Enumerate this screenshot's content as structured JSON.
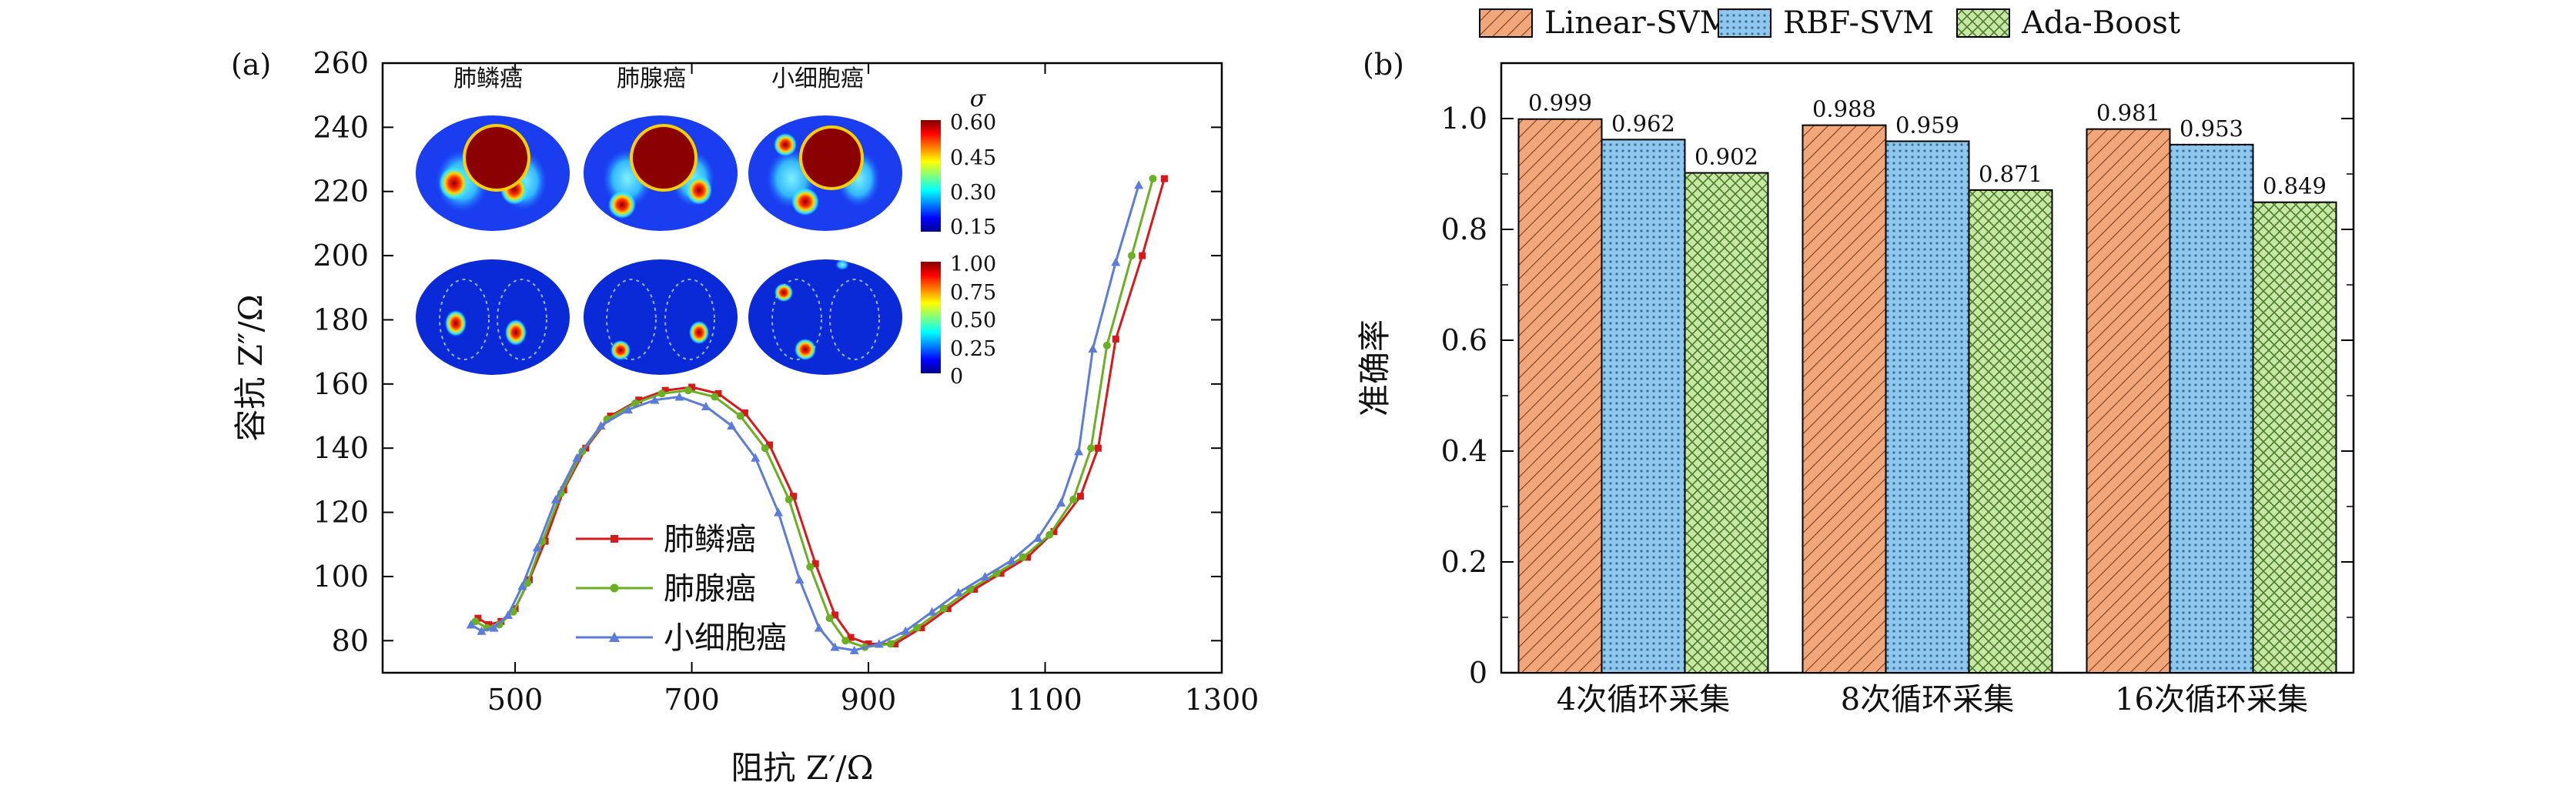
{
  "panel_a": {
    "label": "(a)",
    "xlabel": "阻抗 Z′/Ω",
    "ylabel": "容抗 Z″/Ω",
    "xticks": [
      "500",
      "700",
      "900",
      "1100",
      "1300"
    ],
    "yticks": [
      "80",
      "100",
      "120",
      "140",
      "160",
      "180",
      "200",
      "220",
      "240",
      "260"
    ],
    "inset": {
      "col_titles": [
        "肺鳞癌",
        "肺腺癌",
        "小细胞癌"
      ],
      "sigma_label": "σ",
      "cbar_top_ticks": [
        "0.60",
        "0.45",
        "0.30",
        "0.15"
      ],
      "cbar_bottom_ticks": [
        "1.00",
        "0.75",
        "0.50",
        "0.25",
        "0"
      ]
    }
  },
  "panel_b": {
    "label": "(b)",
    "ylabel": "准确率",
    "yticks": [
      "0",
      "0.2",
      "0.4",
      "0.6",
      "0.8",
      "1.0"
    ],
    "legend": [
      "Linear-SVM",
      "RBF-SVM",
      "Ada-Boost"
    ]
  },
  "chart_data": [
    {
      "type": "line",
      "xlabel": "阻抗 Z′/Ω",
      "ylabel": "容抗 Z″/Ω",
      "xlim": [
        350,
        1300
      ],
      "ylim": [
        70,
        260
      ],
      "legend_placement": "bottom-center",
      "series": [
        {
          "name": "肺鳞癌",
          "color": "#d7191c",
          "marker": "square",
          "points": [
            [
              458,
              87
            ],
            [
              470,
              85
            ],
            [
              484,
              86
            ],
            [
              500,
              90
            ],
            [
              516,
              99
            ],
            [
              534,
              111
            ],
            [
              555,
              127
            ],
            [
              580,
              140
            ],
            [
              608,
              150
            ],
            [
              640,
              155
            ],
            [
              670,
              158
            ],
            [
              700,
              159
            ],
            [
              730,
              157
            ],
            [
              760,
              151
            ],
            [
              788,
              141
            ],
            [
              815,
              125
            ],
            [
              840,
              104
            ],
            [
              862,
              88
            ],
            [
              880,
              81
            ],
            [
              900,
              79
            ],
            [
              930,
              79
            ],
            [
              960,
              84
            ],
            [
              990,
              90
            ],
            [
              1020,
              96
            ],
            [
              1050,
              101
            ],
            [
              1080,
              106
            ],
            [
              1110,
              114
            ],
            [
              1140,
              125
            ],
            [
              1160,
              140
            ],
            [
              1180,
              174
            ],
            [
              1210,
              200
            ],
            [
              1235,
              224
            ]
          ]
        },
        {
          "name": "肺腺癌",
          "color": "#6ab023",
          "marker": "circle",
          "points": [
            [
              455,
              86
            ],
            [
              468,
              84
            ],
            [
              482,
              85
            ],
            [
              498,
              89
            ],
            [
              514,
              98
            ],
            [
              531,
              111
            ],
            [
              552,
              126
            ],
            [
              576,
              139
            ],
            [
              604,
              149
            ],
            [
              636,
              154
            ],
            [
              666,
              157
            ],
            [
              696,
              158
            ],
            [
              726,
              156
            ],
            [
              755,
              150
            ],
            [
              783,
              140
            ],
            [
              810,
              124
            ],
            [
              834,
              103
            ],
            [
              856,
              87
            ],
            [
              874,
              80
            ],
            [
              896,
              78
            ],
            [
              925,
              79
            ],
            [
              955,
              84
            ],
            [
              985,
              90
            ],
            [
              1015,
              96
            ],
            [
              1045,
              101
            ],
            [
              1075,
              106
            ],
            [
              1105,
              113
            ],
            [
              1132,
              124
            ],
            [
              1152,
              140
            ],
            [
              1170,
              172
            ],
            [
              1198,
              200
            ],
            [
              1222,
              224
            ]
          ]
        },
        {
          "name": "小细胞癌",
          "color": "#5b7cd9",
          "marker": "triangle",
          "points": [
            [
              450,
              85
            ],
            [
              462,
              83
            ],
            [
              476,
              84
            ],
            [
              492,
              88
            ],
            [
              508,
              97
            ],
            [
              525,
              109
            ],
            [
              546,
              124
            ],
            [
              570,
              137
            ],
            [
              597,
              147
            ],
            [
              628,
              152
            ],
            [
              658,
              155
            ],
            [
              686,
              156
            ],
            [
              716,
              153
            ],
            [
              745,
              147
            ],
            [
              772,
              137
            ],
            [
              798,
              120
            ],
            [
              822,
              99
            ],
            [
              844,
              84
            ],
            [
              862,
              78
            ],
            [
              884,
              77
            ],
            [
              912,
              79
            ],
            [
              942,
              83
            ],
            [
              972,
              89
            ],
            [
              1002,
              95
            ],
            [
              1032,
              100
            ],
            [
              1062,
              105
            ],
            [
              1092,
              112
            ],
            [
              1118,
              123
            ],
            [
              1138,
              139
            ],
            [
              1154,
              171
            ],
            [
              1180,
              198
            ],
            [
              1206,
              222
            ]
          ]
        }
      ]
    },
    {
      "type": "bar",
      "categories": [
        "4次循环采集",
        "8次循环采集",
        "16次循环采集"
      ],
      "ylabel": "准确率",
      "ylim": [
        0,
        1.1
      ],
      "legend_placement": "top-center",
      "series": [
        {
          "name": "Linear-SVM",
          "color": "#f2a77a",
          "pattern": "hatch-diagonal",
          "values": [
            0.999,
            0.988,
            0.981
          ],
          "labels": [
            "0.999",
            "0.988",
            "0.981"
          ]
        },
        {
          "name": "RBF-SVM",
          "color": "#8fc8ee",
          "pattern": "dots",
          "values": [
            0.962,
            0.959,
            0.953
          ],
          "labels": [
            "0.962",
            "0.959",
            "0.953"
          ]
        },
        {
          "name": "Ada-Boost",
          "color": "#c6e8a4",
          "pattern": "crosshatch",
          "values": [
            0.902,
            0.871,
            0.849
          ],
          "labels": [
            "0.902",
            "0.871",
            "0.849"
          ]
        }
      ]
    }
  ]
}
